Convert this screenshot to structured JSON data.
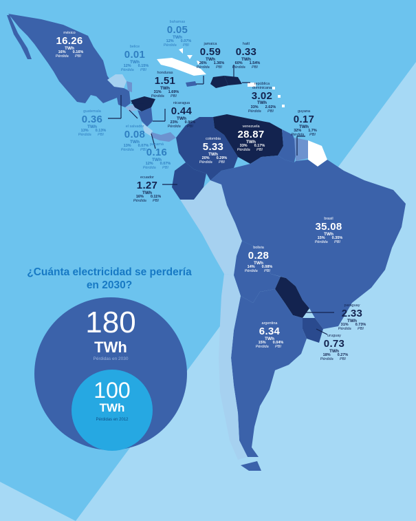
{
  "question": {
    "line1": "¿Cuánta electricidad se perdería",
    "line2": "en 2030?"
  },
  "total_2030": {
    "value": "180",
    "unit": "TWh",
    "caption": "Pérdidas en 2030"
  },
  "total_2012": {
    "value": "100",
    "unit": "TWh",
    "caption": "Pérdidas en 2012"
  },
  "column_labels": {
    "loss": "Pérdida",
    "gdp": "PBI"
  },
  "countries": {
    "mexico": {
      "name": "méxico",
      "value": "16.26",
      "unit": "TWh",
      "loss": "16%",
      "gdp": "0.16%"
    },
    "bahamas": {
      "name": "bahamas",
      "value": "0.05",
      "unit": "TWh",
      "loss": "12%",
      "gdp": "0.07%"
    },
    "belice": {
      "name": "belice",
      "value": "0.01",
      "unit": "TWh",
      "loss": "12%",
      "gdp": "0.15%"
    },
    "jamaica": {
      "name": "jamaica",
      "value": "0.59",
      "unit": "TWh",
      "loss": "26%",
      "gdp": "1.36%"
    },
    "haiti": {
      "name": "haití",
      "value": "0.33",
      "unit": "TWh",
      "loss": "60%",
      "gdp": "1.54%"
    },
    "honduras": {
      "name": "honduras",
      "value": "1.51",
      "unit": "TWh",
      "loss": "31%",
      "gdp": "1.69%"
    },
    "republica_dominicana": {
      "name1": "república",
      "name2": "dominicana",
      "value": "3.02",
      "unit": "TWh",
      "loss": "33%",
      "gdp": "2.02%"
    },
    "guatemala": {
      "name": "guatemala",
      "value": "0.36",
      "unit": "TWh",
      "loss": "13%",
      "gdp": "0.13%"
    },
    "nicaragua": {
      "name": "nicaragua",
      "value": "0.44",
      "unit": "TWh",
      "loss": "23%",
      "gdp": "0.96%"
    },
    "el_salvador": {
      "name": "el salvador",
      "value": "0.08",
      "unit": "TWh",
      "loss": "13%",
      "gdp": "0.07%"
    },
    "guyana": {
      "name": "guyana",
      "value": "0.17",
      "unit": "TWh",
      "loss": "32%",
      "gdp": "1.7%"
    },
    "venezuela": {
      "name": "venezuela",
      "value": "28.87",
      "unit": "TWh",
      "loss": "33%",
      "gdp": "0.17%"
    },
    "colombia": {
      "name": "colombia",
      "value": "5.33",
      "unit": "TWh",
      "loss": "20%",
      "gdp": "0.29%"
    },
    "panama": {
      "name": "panamá",
      "value": "0.16",
      "unit": "TWh",
      "loss": "12%",
      "gdp": "0.07%"
    },
    "ecuador": {
      "name": "ecuador",
      "value": "1.27",
      "unit": "TWh",
      "loss": "16%",
      "gdp": "0.11%"
    },
    "brasil": {
      "name": "brasil",
      "value": "35.08",
      "unit": "TWh",
      "loss": "15%",
      "gdp": "0.35%"
    },
    "bolivia": {
      "name": "bolivia",
      "value": "0.28",
      "unit": "TWh",
      "loss": "14%",
      "gdp": "0.08%"
    },
    "paraguay": {
      "name": "paraguay",
      "value": "2.33",
      "unit": "TWh",
      "loss": "31%",
      "gdp": "0.73%"
    },
    "argentina": {
      "name": "argentina",
      "value": "6.34",
      "unit": "TWh",
      "loss": "15%",
      "gdp": "0.04%"
    },
    "uruguay": {
      "name": "uruguay",
      "value": "0.73",
      "unit": "TWh",
      "loss": "18%",
      "gdp": "0.27%"
    }
  },
  "colors": {
    "background": "#6cc3ee",
    "diagonal": "#a6d9f5",
    "circle_2030": "#3b62aa",
    "circle_2012": "#26a8e2",
    "title": "#1779c4"
  }
}
